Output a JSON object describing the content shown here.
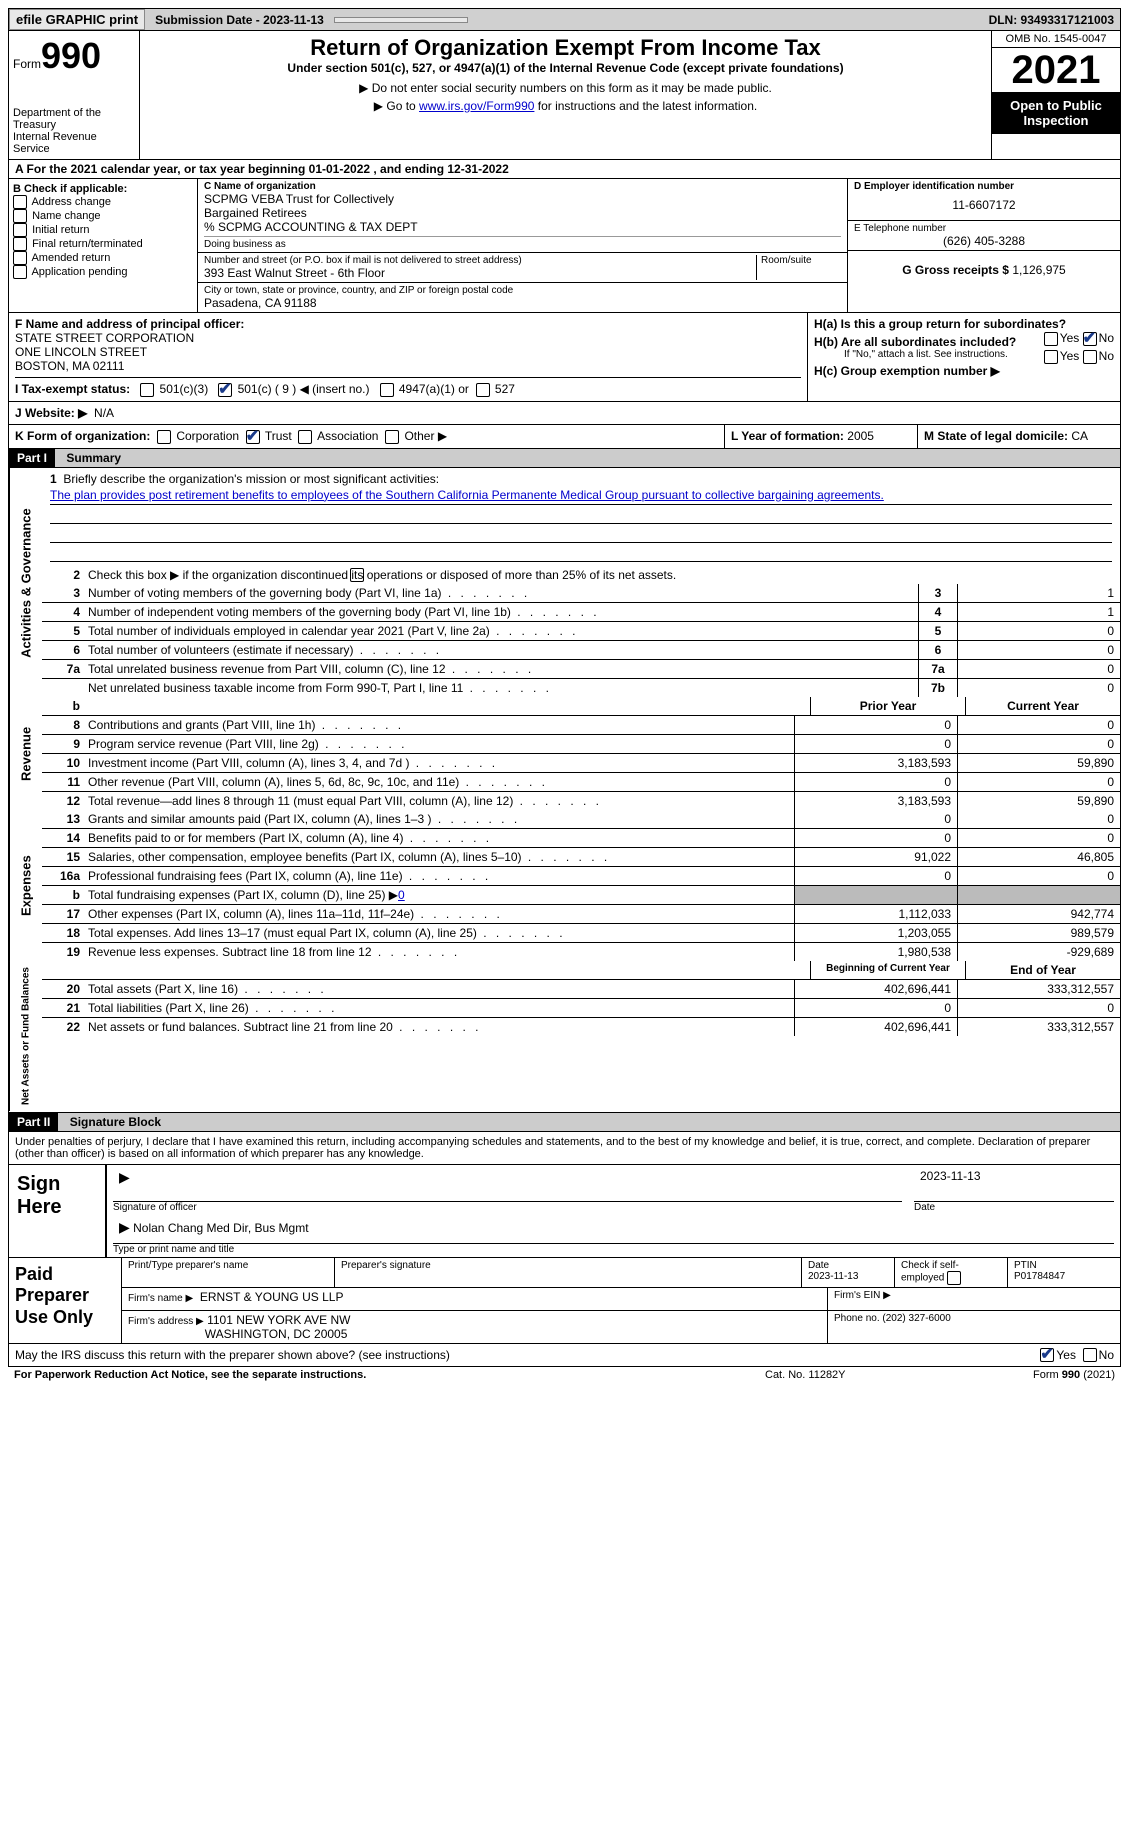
{
  "top": {
    "efile": "efile GRAPHIC print",
    "subdate_label": "Submission Date - 2023-11-13",
    "dln_label": "DLN: 93493317121003"
  },
  "header": {
    "form_label": "Form",
    "form_num": "990",
    "dept": "Department of the Treasury\nInternal Revenue Service",
    "title": "Return of Organization Exempt From Income Tax",
    "sub1": "Under section 501(c), 527, or 4947(a)(1) of the Internal Revenue Code (except private foundations)",
    "sub2": "▶ Do not enter social security numbers on this form as it may be made public.",
    "sub3_pre": "▶ Go to ",
    "sub3_link": "www.irs.gov/Form990",
    "sub3_post": " for instructions and the latest information.",
    "omb": "OMB No. 1545-0047",
    "year": "2021",
    "otp": "Open to Public Inspection"
  },
  "a": {
    "text": "A For the 2021 calendar year, or tax year beginning 01-01-2022     , and ending 12-31-2022"
  },
  "b": {
    "title": "B Check if applicable:",
    "items": [
      "Address change",
      "Name change",
      "Initial return",
      "Final return/terminated",
      "Amended return",
      "Application pending"
    ]
  },
  "c": {
    "name_lbl": "C Name of organization",
    "name1": "SCPMG VEBA Trust for Collectively",
    "name2": "Bargained Retirees",
    "name3": "% SCPMG ACCOUNTING & TAX DEPT",
    "dba": "Doing business as",
    "addr_lbl": "Number and street (or P.O. box if mail is not delivered to street address)",
    "room_lbl": "Room/suite",
    "addr": "393 East Walnut Street - 6th Floor",
    "city_lbl": "City or town, state or province, country, and ZIP or foreign postal code",
    "city": "Pasadena, CA  91188"
  },
  "d": {
    "ein_lbl": "D Employer identification number",
    "ein": "11-6607172",
    "phone_lbl": "E Telephone number",
    "phone": "(626) 405-3288",
    "gross_lbl": "G Gross receipts $",
    "gross": "1,126,975"
  },
  "f": {
    "lbl": "F  Name and address of principal officer:",
    "l1": "STATE STREET CORPORATION",
    "l2": "ONE LINCOLN STREET",
    "l3": "BOSTON, MA  02111"
  },
  "h": {
    "a": "H(a)  Is this a group return for subordinates?",
    "b": "H(b)  Are all subordinates included?",
    "bnote": "If \"No,\" attach a list. See instructions.",
    "c": "H(c)  Group exemption number ▶",
    "yes": "Yes",
    "no": "No"
  },
  "i": {
    "lbl": "I   Tax-exempt status:",
    "o1": "501(c)(3)",
    "o2": "501(c) ( 9 ) ◀ (insert no.)",
    "o3": "4947(a)(1) or",
    "o4": "527"
  },
  "j": {
    "lbl": "J   Website: ▶",
    "val": "N/A"
  },
  "k": {
    "lbl": "K Form of organization:",
    "o1": "Corporation",
    "o2": "Trust",
    "o3": "Association",
    "o4": "Other ▶"
  },
  "l": {
    "lbl": "L Year of formation:",
    "val": "2005"
  },
  "m": {
    "lbl": "M State of legal domicile:",
    "val": "CA"
  },
  "part1": {
    "hdr": "Part I",
    "title": "Summary"
  },
  "mission": {
    "num": "1",
    "lbl": "Briefly describe the organization's mission or most significant activities:",
    "text": "The plan provides post retirement benefits to employees of the Southern California Permanente Medical Group pursuant to collective bargaining agreements."
  },
  "line2": {
    "num": "2",
    "txt": "Check this box ▶     if the organization discontinued its operations or disposed of more than 25% of its net assets."
  },
  "sidelabels": {
    "ag": "Activities & Governance",
    "rev": "Revenue",
    "exp": "Expenses",
    "na": "Net Assets or Fund Balances"
  },
  "rows_ag": [
    {
      "num": "3",
      "txt": "Number of voting members of the governing body (Part VI, line 1a)",
      "box": "3",
      "val": "1"
    },
    {
      "num": "4",
      "txt": "Number of independent voting members of the governing body (Part VI, line 1b)",
      "box": "4",
      "val": "1"
    },
    {
      "num": "5",
      "txt": "Total number of individuals employed in calendar year 2021 (Part V, line 2a)",
      "box": "5",
      "val": "0"
    },
    {
      "num": "6",
      "txt": "Total number of volunteers (estimate if necessary)",
      "box": "6",
      "val": "0"
    },
    {
      "num": "7a",
      "txt": "Total unrelated business revenue from Part VIII, column (C), line 12",
      "box": "7a",
      "val": "0"
    },
    {
      "num": "",
      "txt": "Net unrelated business taxable income from Form 990-T, Part I, line 11",
      "box": "7b",
      "val": "0"
    }
  ],
  "colhdr": {
    "b": "b",
    "prior": "Prior Year",
    "curr": "Current Year"
  },
  "rows_rev": [
    {
      "num": "8",
      "txt": "Contributions and grants (Part VIII, line 1h)",
      "p": "0",
      "c": "0"
    },
    {
      "num": "9",
      "txt": "Program service revenue (Part VIII, line 2g)",
      "p": "0",
      "c": "0"
    },
    {
      "num": "10",
      "txt": "Investment income (Part VIII, column (A), lines 3, 4, and 7d )",
      "p": "3,183,593",
      "c": "59,890"
    },
    {
      "num": "11",
      "txt": "Other revenue (Part VIII, column (A), lines 5, 6d, 8c, 9c, 10c, and 11e)",
      "p": "0",
      "c": "0"
    },
    {
      "num": "12",
      "txt": "Total revenue—add lines 8 through 11 (must equal Part VIII, column (A), line 12)",
      "p": "3,183,593",
      "c": "59,890"
    }
  ],
  "rows_exp": [
    {
      "num": "13",
      "txt": "Grants and similar amounts paid (Part IX, column (A), lines 1–3 )",
      "p": "0",
      "c": "0"
    },
    {
      "num": "14",
      "txt": "Benefits paid to or for members (Part IX, column (A), line 4)",
      "p": "0",
      "c": "0"
    },
    {
      "num": "15",
      "txt": "Salaries, other compensation, employee benefits (Part IX, column (A), lines 5–10)",
      "p": "91,022",
      "c": "46,805"
    },
    {
      "num": "16a",
      "txt": "Professional fundraising fees (Part IX, column (A), line 11e)",
      "p": "0",
      "c": "0"
    }
  ],
  "row_16b": {
    "num": "b",
    "txt": "Total fundraising expenses (Part IX, column (D), line 25) ▶",
    "val": "0"
  },
  "rows_exp2": [
    {
      "num": "17",
      "txt": "Other expenses (Part IX, column (A), lines 11a–11d, 11f–24e)",
      "p": "1,112,033",
      "c": "942,774"
    },
    {
      "num": "18",
      "txt": "Total expenses. Add lines 13–17 (must equal Part IX, column (A), line 25)",
      "p": "1,203,055",
      "c": "989,579"
    },
    {
      "num": "19",
      "txt": "Revenue less expenses. Subtract line 18 from line 12",
      "p": "1,980,538",
      "c": "-929,689"
    }
  ],
  "colhdr2": {
    "prior": "Beginning of Current Year",
    "curr": "End of Year"
  },
  "rows_na": [
    {
      "num": "20",
      "txt": "Total assets (Part X, line 16)",
      "p": "402,696,441",
      "c": "333,312,557"
    },
    {
      "num": "21",
      "txt": "Total liabilities (Part X, line 26)",
      "p": "0",
      "c": "0"
    },
    {
      "num": "22",
      "txt": "Net assets or fund balances. Subtract line 21 from line 20",
      "p": "402,696,441",
      "c": "333,312,557"
    }
  ],
  "part2": {
    "hdr": "Part II",
    "title": "Signature Block"
  },
  "sig": {
    "decl": "Under penalties of perjury, I declare that I have examined this return, including accompanying schedules and statements, and to the best of my knowledge and belief, it is true, correct, and complete. Declaration of preparer (other than officer) is based on all information of which preparer has any knowledge.",
    "here": "Sign Here",
    "officer_lbl": "Signature of officer",
    "date": "2023-11-13",
    "date_lbl": "Date",
    "name": "Nolan Chang  Med Dir, Bus Mgmt",
    "name_lbl": "Type or print name and title"
  },
  "prep": {
    "lbl": "Paid Preparer Use Only",
    "c1": "Print/Type preparer's name",
    "c2": "Preparer's signature",
    "c3": "Date",
    "c3v": "2023-11-13",
    "c4": "Check       if self-employed",
    "c5": "PTIN",
    "c5v": "P01784847",
    "firm_lbl": "Firm's name    ▶",
    "firm": "ERNST & YOUNG US LLP",
    "ein_lbl": "Firm's EIN ▶",
    "addr_lbl": "Firm's address ▶",
    "addr1": "1101 NEW YORK AVE NW",
    "addr2": "WASHINGTON, DC  20005",
    "phone_lbl": "Phone no.",
    "phone": "(202) 327-6000"
  },
  "discuss": {
    "txt": "May the IRS discuss this return with the preparer shown above? (see instructions)",
    "yes": "Yes",
    "no": "No"
  },
  "footer": {
    "l": "For Paperwork Reduction Act Notice, see the separate instructions.",
    "m": "Cat. No. 11282Y",
    "r": "Form 990 (2021)"
  }
}
